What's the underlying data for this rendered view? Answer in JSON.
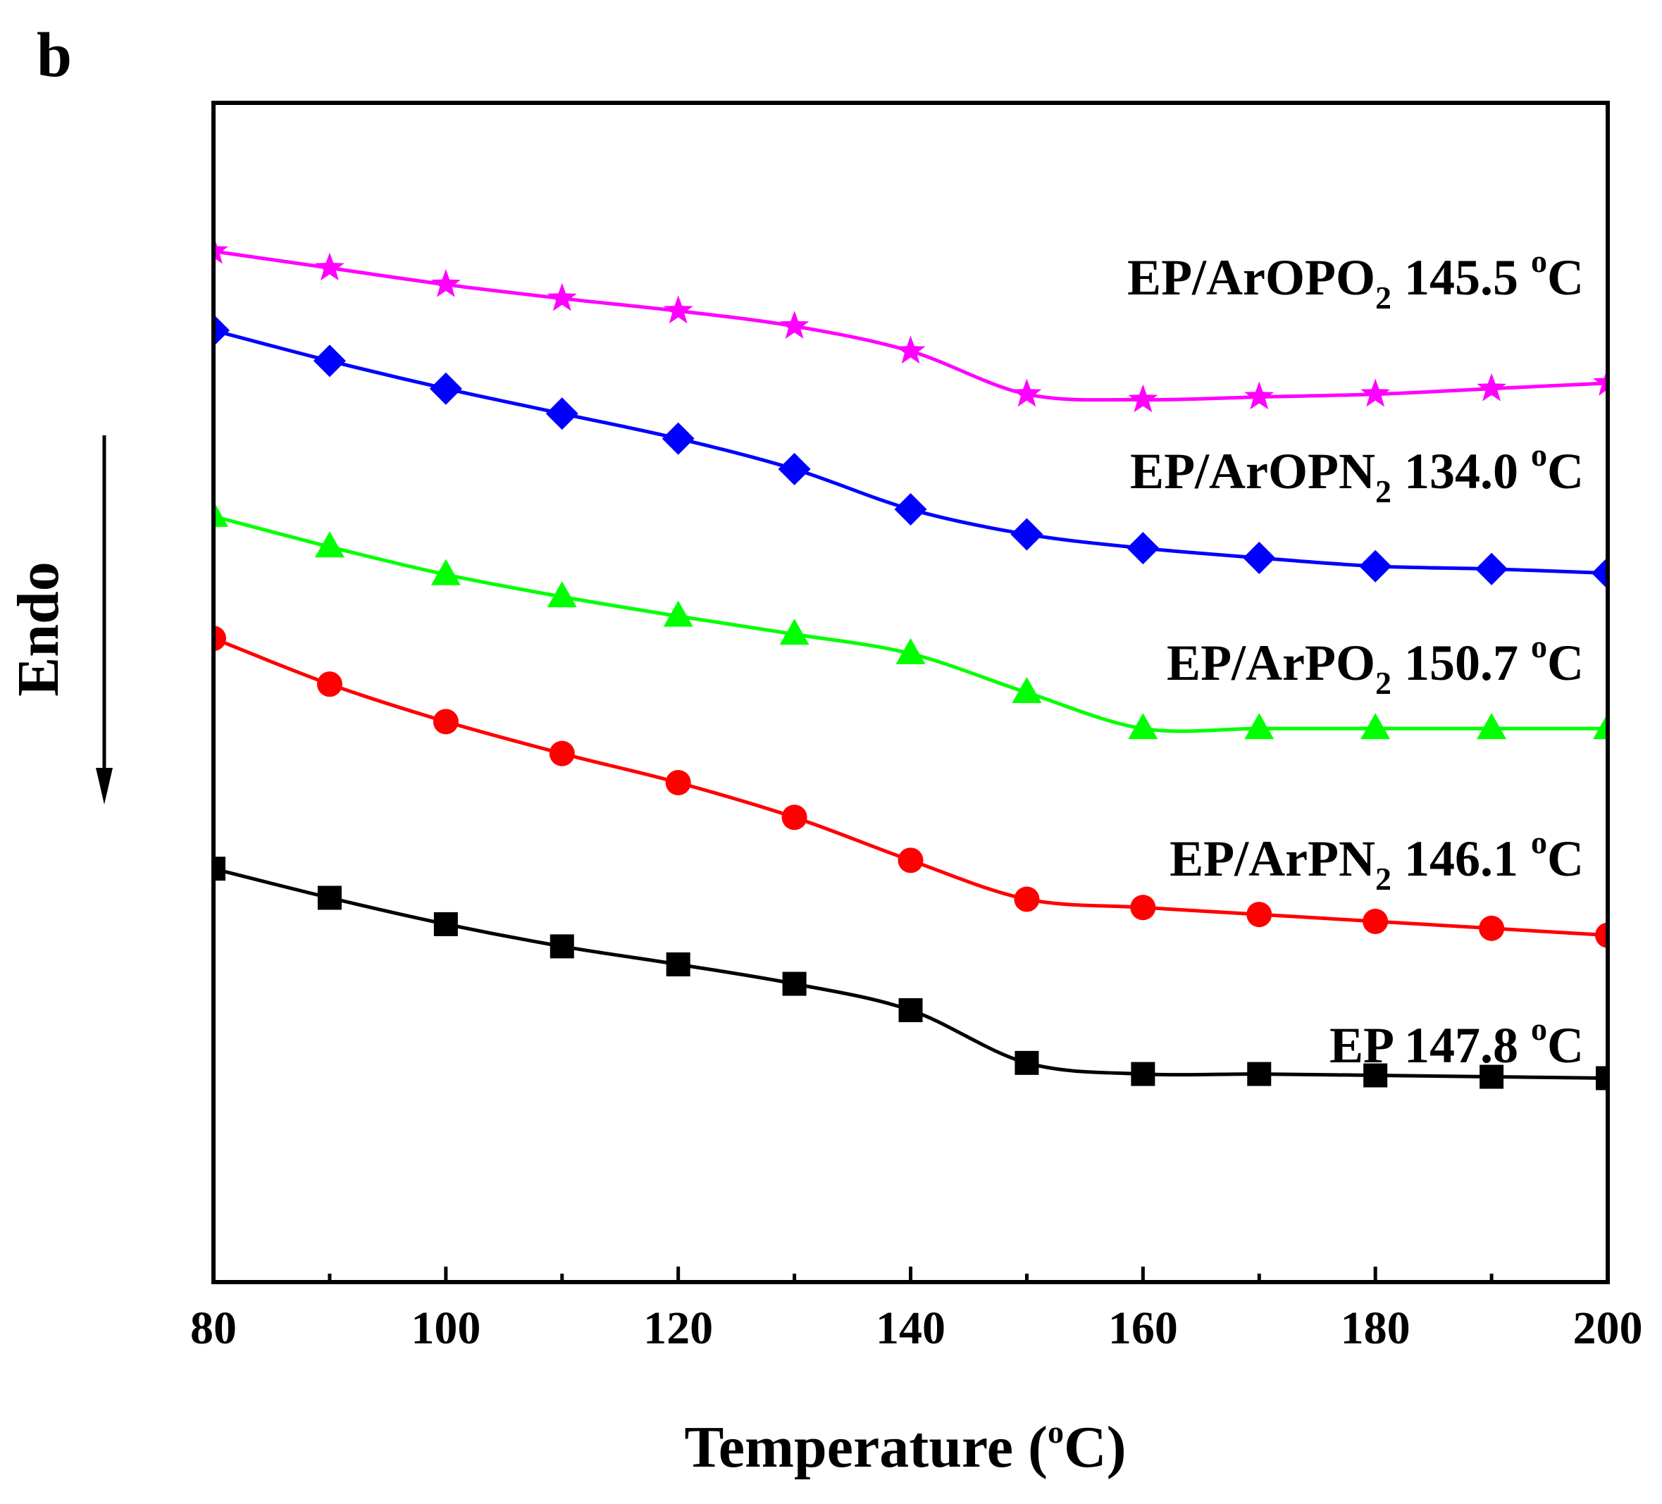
{
  "chart_data": {
    "type": "line",
    "panel_label": "b",
    "xlabel": {
      "main": "Temperature (",
      "superscript": "o",
      "tail": "C)"
    },
    "ylabel": "Endo",
    "xlim": [
      80,
      200
    ],
    "xticks": [
      80,
      100,
      120,
      140,
      160,
      180,
      200
    ],
    "y_ticks_visible": false,
    "grid": false,
    "x": [
      80,
      90,
      100,
      110,
      120,
      130,
      140,
      150,
      160,
      170,
      180,
      190,
      200
    ],
    "series": [
      {
        "name": "EP/ArOPO2",
        "label": {
          "base": "EP/ArOPO",
          "sub": "2",
          "value": " 145.5 ",
          "degree": "o",
          "unit": "C"
        },
        "color": "#ff00ff",
        "marker": "star",
        "values": [
          9.43,
          9.31,
          9.19,
          9.09,
          9.0,
          8.89,
          8.71,
          8.4,
          8.36,
          8.38,
          8.4,
          8.44,
          8.48
        ]
      },
      {
        "name": "EP/ArOPN2",
        "label": {
          "base": "EP/ArOPN",
          "sub": "2",
          "value": " 134.0 ",
          "degree": "o",
          "unit": "C"
        },
        "color": "#0000ff",
        "marker": "diamond",
        "values": [
          8.86,
          8.64,
          8.44,
          8.26,
          8.08,
          7.86,
          7.57,
          7.39,
          7.29,
          7.22,
          7.16,
          7.14,
          7.11
        ]
      },
      {
        "name": "EP/ArPO2",
        "label": {
          "base": "EP/ArPO",
          "sub": "2",
          "value": " 150.7 ",
          "degree": "o",
          "unit": "C"
        },
        "color": "#00ff00",
        "marker": "triangle",
        "values": [
          7.52,
          7.3,
          7.1,
          6.94,
          6.8,
          6.67,
          6.53,
          6.25,
          5.99,
          5.99,
          5.99,
          5.99,
          5.99
        ]
      },
      {
        "name": "EP/ArPN2",
        "label": {
          "base": "EP/ArPN",
          "sub": "2",
          "value": " 146.1 ",
          "degree": "o",
          "unit": "C"
        },
        "color": "#ff0000",
        "marker": "circle",
        "values": [
          6.64,
          6.31,
          6.04,
          5.81,
          5.6,
          5.35,
          5.04,
          4.76,
          4.7,
          4.65,
          4.6,
          4.55,
          4.5
        ]
      },
      {
        "name": "EP",
        "label": {
          "base": "EP",
          "sub": "",
          "value": " 147.8 ",
          "degree": "o",
          "unit": "C"
        },
        "color": "#000000",
        "marker": "square",
        "values": [
          4.98,
          4.77,
          4.58,
          4.42,
          4.29,
          4.15,
          3.96,
          3.58,
          3.5,
          3.5,
          3.49,
          3.48,
          3.47
        ]
      }
    ]
  }
}
